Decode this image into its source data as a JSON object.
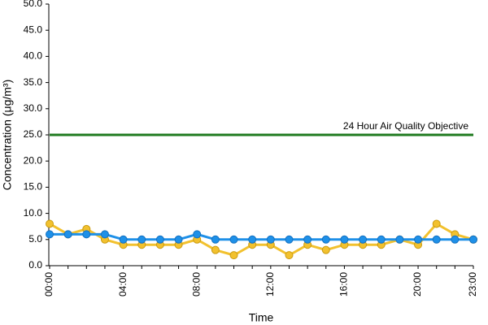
{
  "chart_data": {
    "type": "line",
    "x_label": "Time",
    "y_label": "Concentration (μg/m³)",
    "categories": [
      "00:00",
      null,
      null,
      null,
      "04:00",
      null,
      null,
      null,
      "08:00",
      null,
      null,
      null,
      "12:00",
      null,
      null,
      null,
      "16:00",
      null,
      null,
      null,
      "20:00",
      null,
      null,
      "23:00"
    ],
    "series": [
      {
        "color": "#f2c12e",
        "values": [
          8,
          6,
          7,
          5,
          4,
          4,
          4,
          4,
          5,
          3,
          2,
          4,
          4,
          2,
          4,
          3,
          4,
          4,
          4,
          5,
          4,
          8,
          6,
          5
        ]
      },
      {
        "color": "#1e90e8",
        "values": [
          6,
          6,
          6,
          6,
          5,
          5,
          5,
          5,
          6,
          5,
          5,
          5,
          5,
          5,
          5,
          5,
          5,
          5,
          5,
          5,
          5,
          5,
          5,
          5
        ]
      }
    ],
    "reference_line": {
      "value": 25,
      "label": "24 Hour Air Quality Objective",
      "color": "#1f7a1f"
    },
    "ylim": [
      0,
      50
    ],
    "yticks": [
      {
        "value": 0,
        "label": "0.0"
      },
      {
        "value": 5,
        "label": "5.0"
      },
      {
        "value": 10,
        "label": "10.0"
      },
      {
        "value": 15,
        "label": "15.0"
      },
      {
        "value": 20,
        "label": "20.0"
      },
      {
        "value": 25,
        "label": "25.0"
      },
      {
        "value": 30,
        "label": "30.0"
      },
      {
        "value": 35,
        "label": "35.0"
      },
      {
        "value": 40,
        "label": "40.0"
      },
      {
        "value": 45,
        "label": "45.0"
      },
      {
        "value": 50,
        "label": "50.0"
      }
    ]
  }
}
